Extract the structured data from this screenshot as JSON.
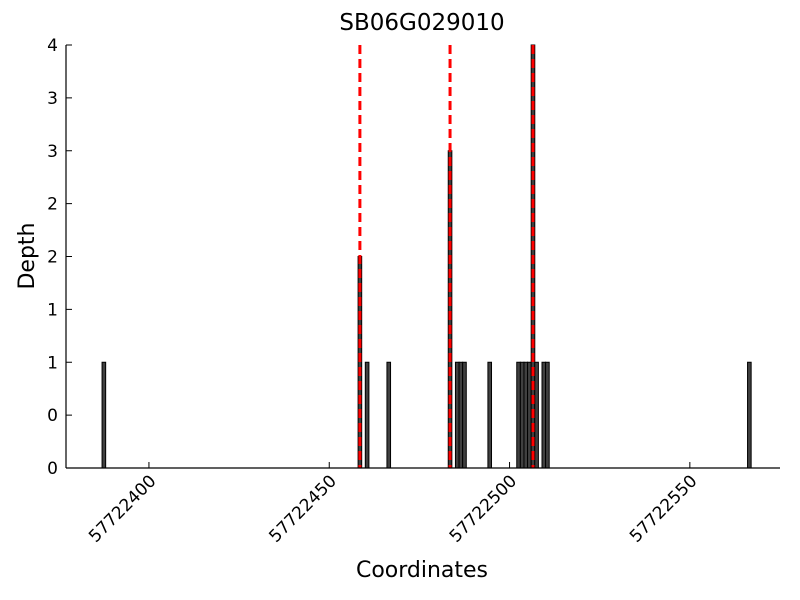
{
  "chart_data": {
    "type": "bar",
    "title": "SB06G029010",
    "xlabel": "Coordinates",
    "ylabel": "Depth",
    "x": [
      57722387,
      57722458,
      57722460,
      57722466,
      57722483,
      57722485,
      57722486,
      57722487,
      57722494,
      57722502,
      57722503,
      57722504,
      57722505,
      57722506,
      57722507,
      57722509,
      57722510,
      57722566
    ],
    "values": [
      1,
      2,
      1,
      1,
      3,
      1,
      1,
      1,
      1,
      1,
      1,
      1,
      1,
      4,
      1,
      1,
      1,
      1
    ],
    "color": "#404040",
    "edgecolor": "#000000",
    "vlines": [
      57722458.5,
      57722483.5,
      57722506.5
    ],
    "vline_color": "#ff0000",
    "xlim": [
      57722377,
      57722575
    ],
    "xticks": [
      57722400,
      57722450,
      57722500,
      57722550
    ],
    "ylim": [
      0,
      4
    ],
    "yticks": [
      0,
      {
        "value": 0.5,
        "label": "0"
      },
      1,
      {
        "value": 1.5,
        "label": "1"
      },
      2,
      {
        "value": 2.5,
        "label": "2"
      },
      3,
      {
        "value": 3.5,
        "label": "3"
      },
      4
    ]
  }
}
